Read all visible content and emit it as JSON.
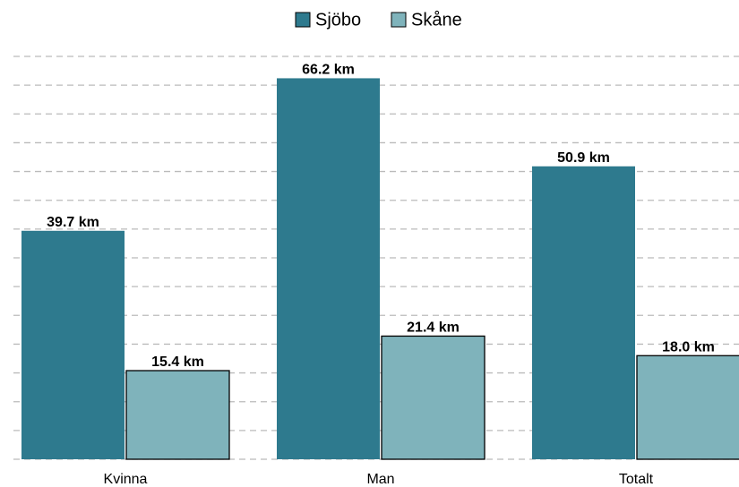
{
  "chart_data": {
    "type": "bar",
    "categories": [
      "Kvinna",
      "Man",
      "Totalt"
    ],
    "series": [
      {
        "name": "Sjöbo",
        "color": "#2e7a8e",
        "values": [
          39.7,
          66.2,
          50.9
        ],
        "value_labels": [
          "39.7 km",
          "66.2 km",
          "50.9 km"
        ]
      },
      {
        "name": "Skåne",
        "color": "#7fb3bb",
        "values": [
          15.4,
          21.4,
          18.0
        ],
        "value_labels": [
          "15.4 km",
          "21.4 km",
          "18.0 km"
        ]
      }
    ],
    "ylim": [
      0,
      70
    ],
    "yticks": [
      0,
      5,
      10,
      15,
      20,
      25,
      30,
      35,
      40,
      45,
      50,
      55,
      60,
      65,
      70
    ],
    "show_ytick_labels": false,
    "grid": true,
    "legend": "top"
  }
}
